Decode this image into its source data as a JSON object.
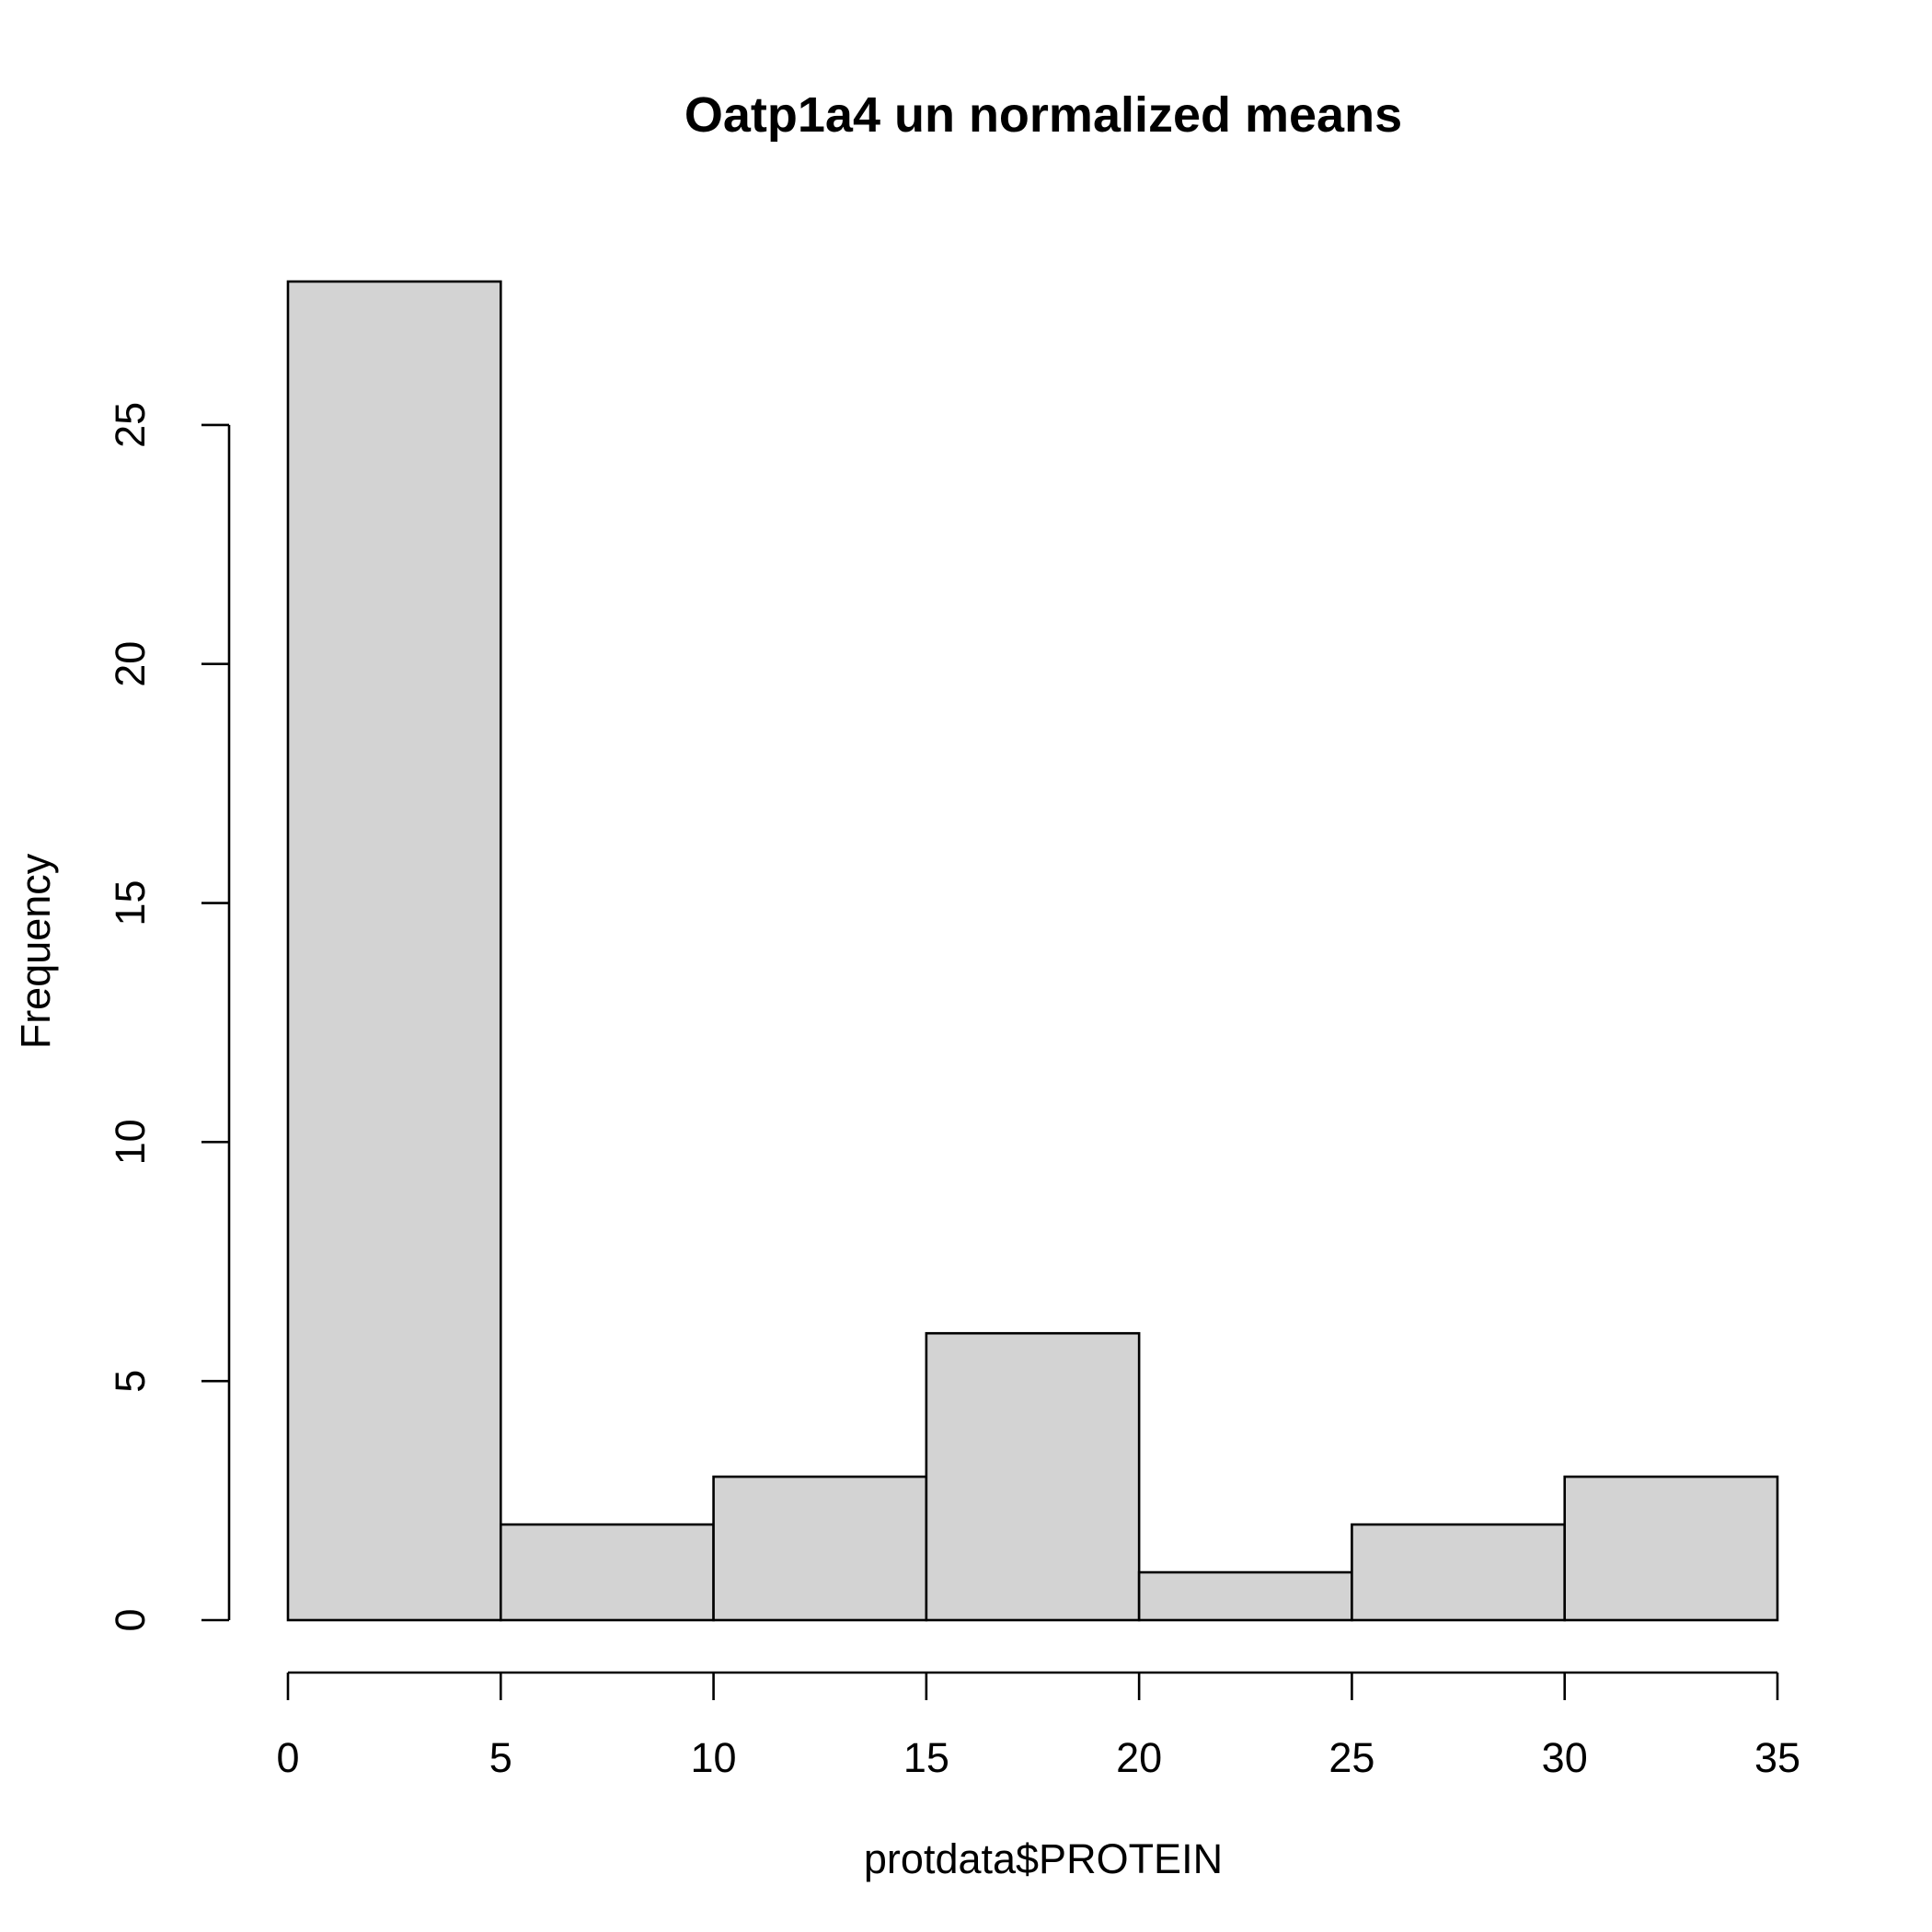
{
  "chart_data": {
    "type": "bar",
    "subtype": "histogram",
    "title": "Oatp1a4 un normalized means",
    "xlabel": "protdata$PROTEIN",
    "ylabel": "Frequency",
    "bin_edges": [
      0,
      5,
      10,
      15,
      20,
      25,
      30,
      35
    ],
    "values": [
      28,
      2,
      3,
      6,
      1,
      2,
      3
    ],
    "xlim": [
      0,
      35
    ],
    "ylim": [
      0,
      28
    ],
    "x_ticks": [
      0,
      5,
      10,
      15,
      20,
      25,
      30,
      35
    ],
    "x_tick_labels": [
      "0",
      "5",
      "10",
      "15",
      "20",
      "25",
      "30",
      "35"
    ],
    "y_ticks": [
      0,
      5,
      10,
      15,
      20,
      25
    ],
    "y_tick_labels": [
      "0",
      "5",
      "10",
      "15",
      "20",
      "25"
    ],
    "grid": false,
    "bar_color": "#d3d3d3",
    "edge_color": "#000000"
  }
}
